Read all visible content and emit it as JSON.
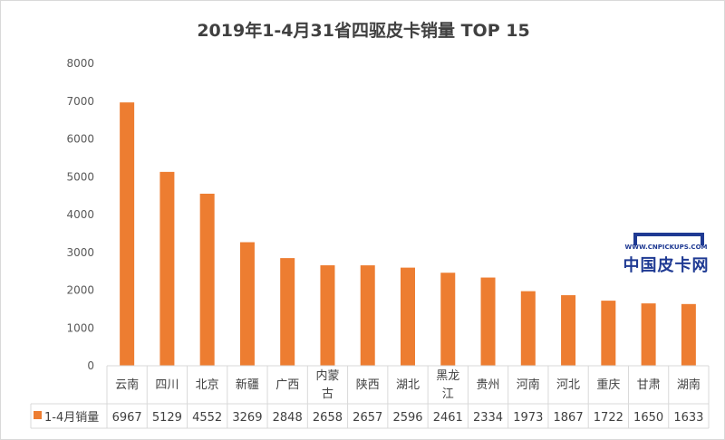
{
  "chart_data": {
    "type": "bar",
    "title": "2019年1-4月31省四驱皮卡销量 TOP 15",
    "categories": [
      "云南",
      "四川",
      "北京",
      "新疆",
      "广西",
      "内蒙古",
      "陕西",
      "湖北",
      "黑龙江",
      "贵州",
      "河南",
      "河北",
      "重庆",
      "甘肃",
      "湖南"
    ],
    "series": [
      {
        "name": "1-4月销量",
        "values": [
          6967,
          5129,
          4552,
          3269,
          2848,
          2658,
          2657,
          2596,
          2461,
          2334,
          1973,
          1867,
          1722,
          1650,
          1633
        ]
      }
    ],
    "ylim": [
      0,
      8000
    ],
    "yticks": [
      0,
      1000,
      2000,
      3000,
      4000,
      5000,
      6000,
      7000,
      8000
    ],
    "xlabel": "",
    "ylabel": "",
    "grid": false,
    "legend": "data-table",
    "bar_color": "#ed7d31"
  },
  "watermark": {
    "url": "WWW.CNPICKUPS.COM",
    "name": "中国皮卡网"
  }
}
